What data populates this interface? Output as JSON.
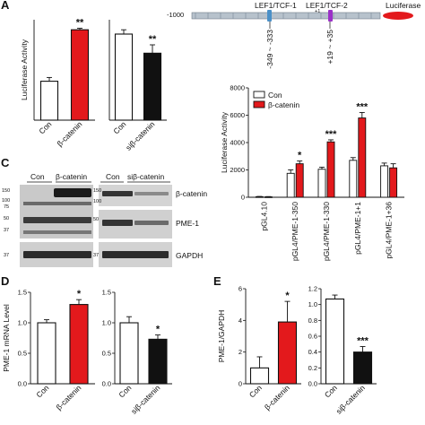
{
  "panel_letters": {
    "a": "A",
    "c": "C",
    "d": "D",
    "e": "E"
  },
  "colors": {
    "con": "#ffffff",
    "bcat": "#e3191c",
    "si": "#111111",
    "stroke": "#111111",
    "lef1": "#4a90c8",
    "lef2": "#9b30c8",
    "luc": "#e3191c",
    "promoter": "#9aa7b4"
  },
  "promoter": {
    "tss_pos": "-1000",
    "site1_name": "LEF1/TCF-1",
    "site2_name": "LEF1/TCF-2",
    "tss_mark": "+1",
    "reporter": "Luciferase",
    "site1_range": "-349 ~ -333",
    "site2_range": "+19 ~ +35"
  },
  "blots": {
    "lane_headers": [
      "Con",
      "β-catenin",
      "Con",
      "siβ-catenin"
    ],
    "mw_left": [
      "150",
      "100",
      "75",
      "50",
      "37",
      "37"
    ],
    "mw_right": [
      "150",
      "100",
      "50",
      "37"
    ],
    "labels": [
      "β-catenin",
      "PME-1",
      "GAPDH"
    ]
  },
  "chart_data": [
    {
      "id": "A1",
      "type": "bar",
      "ylabel": "Luciferase Activity",
      "categories": [
        "Con",
        "β-catenin"
      ],
      "values": [
        310,
        720
      ],
      "errors": [
        30,
        12
      ],
      "colors": [
        "#ffffff",
        "#e3191c"
      ],
      "sig": [
        "",
        "**"
      ],
      "ylim": [
        0,
        800
      ]
    },
    {
      "id": "A2",
      "type": "bar",
      "ylabel": "",
      "categories": [
        "Con",
        "siβ-catenin"
      ],
      "values": [
        360,
        280
      ],
      "errors": [
        18,
        35
      ],
      "colors": [
        "#ffffff",
        "#111111"
      ],
      "sig": [
        "",
        "**"
      ],
      "ylim": [
        0,
        420
      ]
    },
    {
      "id": "B",
      "type": "bar",
      "ylabel": "Luciferase Activity",
      "categories": [
        "pGL4.10",
        "pGL4/PME-1-350",
        "pGL4/PME-1-330",
        "pGL4/PME-1+1",
        "pGL4/PME-1+36"
      ],
      "ylim": [
        0,
        8000
      ],
      "yticks": [
        0,
        2000,
        4000,
        6000,
        8000
      ],
      "series": [
        {
          "name": "Con",
          "color": "#ffffff",
          "values": [
            40,
            1750,
            2050,
            2700,
            2300
          ],
          "errors": [
            20,
            250,
            150,
            200,
            200
          ]
        },
        {
          "name": "β-catenin",
          "color": "#e3191c",
          "values": [
            30,
            2450,
            4050,
            5800,
            2150
          ],
          "errors": [
            20,
            200,
            150,
            400,
            300
          ]
        }
      ],
      "sig": [
        "",
        "*",
        "***",
        "***",
        ""
      ],
      "legend": "top-left"
    },
    {
      "id": "D1",
      "type": "bar",
      "ylabel": "PME-1 mRNA Level",
      "categories": [
        "Con",
        "β-catenin"
      ],
      "values": [
        1.0,
        1.3
      ],
      "errors": [
        0.05,
        0.08
      ],
      "colors": [
        "#ffffff",
        "#e3191c"
      ],
      "sig": [
        "",
        "*"
      ],
      "ylim": [
        0,
        1.5
      ],
      "yticks": [
        0,
        0.5,
        1.0,
        1.5
      ]
    },
    {
      "id": "D2",
      "type": "bar",
      "ylabel": "",
      "categories": [
        "Con",
        "siβ-catenin"
      ],
      "values": [
        1.0,
        0.73
      ],
      "errors": [
        0.1,
        0.07
      ],
      "colors": [
        "#ffffff",
        "#111111"
      ],
      "sig": [
        "",
        "*"
      ],
      "ylim": [
        0,
        1.5
      ],
      "yticks": [
        0,
        0.5,
        1.0,
        1.5
      ]
    },
    {
      "id": "E1",
      "type": "bar",
      "ylabel": "PME-1/GAPDH",
      "categories": [
        "Con",
        "β-catenin"
      ],
      "values": [
        1.0,
        3.9
      ],
      "errors": [
        0.7,
        1.3
      ],
      "colors": [
        "#ffffff",
        "#e3191c"
      ],
      "sig": [
        "",
        "*"
      ],
      "ylim": [
        0,
        6
      ],
      "yticks": [
        0,
        2,
        4,
        6
      ]
    },
    {
      "id": "E2",
      "type": "bar",
      "ylabel": "",
      "categories": [
        "Con",
        "siβ-catenin"
      ],
      "values": [
        1.07,
        0.4
      ],
      "errors": [
        0.05,
        0.07
      ],
      "colors": [
        "#ffffff",
        "#111111"
      ],
      "sig": [
        "",
        "***"
      ],
      "ylim": [
        0,
        1.2
      ],
      "yticks": [
        0,
        0.2,
        0.4,
        0.6,
        0.8,
        1.0,
        1.2
      ]
    }
  ]
}
